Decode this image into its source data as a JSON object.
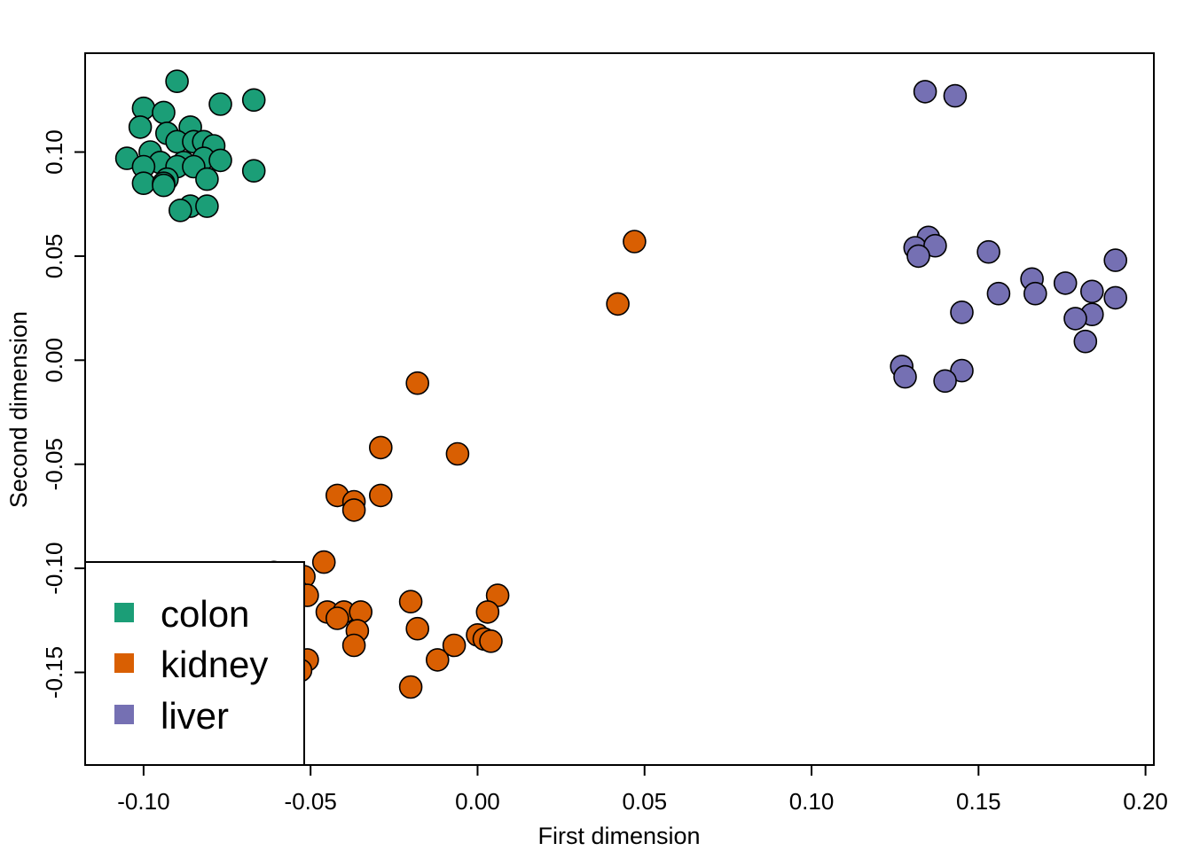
{
  "chart_data": {
    "type": "scatter",
    "title": "",
    "xlabel": "First dimension",
    "ylabel": "Second dimension",
    "xlim": [
      -0.1175,
      0.2025
    ],
    "ylim": [
      -0.1945,
      0.1475
    ],
    "grid": false,
    "legend_position": "bottom-left",
    "x_ticks": [
      -0.1,
      -0.05,
      0.0,
      0.05,
      0.1,
      0.15,
      0.2
    ],
    "x_tick_labels": [
      "-0.10",
      "-0.05",
      "0.00",
      "0.05",
      "0.10",
      "0.15",
      "0.20"
    ],
    "y_ticks": [
      -0.15,
      -0.1,
      -0.05,
      0.0,
      0.05,
      0.1
    ],
    "y_tick_labels": [
      "-0.15",
      "-0.10",
      "-0.05",
      "0.00",
      "0.05",
      "0.10"
    ],
    "series": [
      {
        "name": "colon",
        "color": "#1B9E77",
        "points": [
          [
            -0.09,
            0.134
          ],
          [
            -0.067,
            0.125
          ],
          [
            -0.077,
            0.123
          ],
          [
            -0.1,
            0.121
          ],
          [
            -0.094,
            0.119
          ],
          [
            -0.101,
            0.112
          ],
          [
            -0.086,
            0.112
          ],
          [
            -0.093,
            0.109
          ],
          [
            -0.09,
            0.105
          ],
          [
            -0.085,
            0.105
          ],
          [
            -0.082,
            0.105
          ],
          [
            -0.079,
            0.103
          ],
          [
            -0.098,
            0.1
          ],
          [
            -0.105,
            0.097
          ],
          [
            -0.082,
            0.097
          ],
          [
            -0.077,
            0.096
          ],
          [
            -0.095,
            0.095
          ],
          [
            -0.088,
            0.095
          ],
          [
            -0.1,
            0.093
          ],
          [
            -0.09,
            0.093
          ],
          [
            -0.085,
            0.093
          ],
          [
            -0.067,
            0.091
          ],
          [
            -0.093,
            0.087
          ],
          [
            -0.081,
            0.087
          ],
          [
            -0.1,
            0.085
          ],
          [
            -0.094,
            0.085
          ],
          [
            -0.094,
            0.084
          ],
          [
            -0.086,
            0.074
          ],
          [
            -0.081,
            0.074
          ],
          [
            -0.089,
            0.072
          ]
        ]
      },
      {
        "name": "kidney",
        "color": "#D95F02",
        "points": [
          [
            0.047,
            0.057
          ],
          [
            0.042,
            0.027
          ],
          [
            -0.018,
            -0.011
          ],
          [
            -0.029,
            -0.042
          ],
          [
            -0.006,
            -0.045
          ],
          [
            -0.042,
            -0.065
          ],
          [
            -0.029,
            -0.065
          ],
          [
            -0.037,
            -0.068
          ],
          [
            -0.037,
            -0.072
          ],
          [
            -0.061,
            -0.102
          ],
          [
            -0.052,
            -0.104
          ],
          [
            -0.046,
            -0.097
          ],
          [
            -0.054,
            -0.111
          ],
          [
            -0.051,
            -0.113
          ],
          [
            -0.02,
            -0.116
          ],
          [
            0.006,
            -0.113
          ],
          [
            -0.045,
            -0.121
          ],
          [
            -0.04,
            -0.121
          ],
          [
            -0.035,
            -0.121
          ],
          [
            0.003,
            -0.121
          ],
          [
            -0.042,
            -0.124
          ],
          [
            -0.036,
            -0.13
          ],
          [
            -0.018,
            -0.129
          ],
          [
            -0.037,
            -0.137
          ],
          [
            -0.007,
            -0.137
          ],
          [
            0.0,
            -0.132
          ],
          [
            0.002,
            -0.134
          ],
          [
            0.004,
            -0.135
          ],
          [
            -0.051,
            -0.144
          ],
          [
            -0.012,
            -0.144
          ],
          [
            -0.053,
            -0.149
          ],
          [
            -0.02,
            -0.157
          ]
        ]
      },
      {
        "name": "liver",
        "color": "#7570B3",
        "points": [
          [
            0.134,
            0.129
          ],
          [
            0.143,
            0.127
          ],
          [
            0.135,
            0.059
          ],
          [
            0.131,
            0.054
          ],
          [
            0.137,
            0.055
          ],
          [
            0.132,
            0.05
          ],
          [
            0.153,
            0.052
          ],
          [
            0.191,
            0.048
          ],
          [
            0.166,
            0.039
          ],
          [
            0.176,
            0.037
          ],
          [
            0.184,
            0.033
          ],
          [
            0.156,
            0.032
          ],
          [
            0.167,
            0.032
          ],
          [
            0.191,
            0.03
          ],
          [
            0.145,
            0.023
          ],
          [
            0.184,
            0.022
          ],
          [
            0.179,
            0.02
          ],
          [
            0.182,
            0.009
          ],
          [
            0.127,
            -0.003
          ],
          [
            0.128,
            -0.008
          ],
          [
            0.145,
            -0.005
          ],
          [
            0.14,
            -0.01
          ]
        ]
      }
    ]
  }
}
